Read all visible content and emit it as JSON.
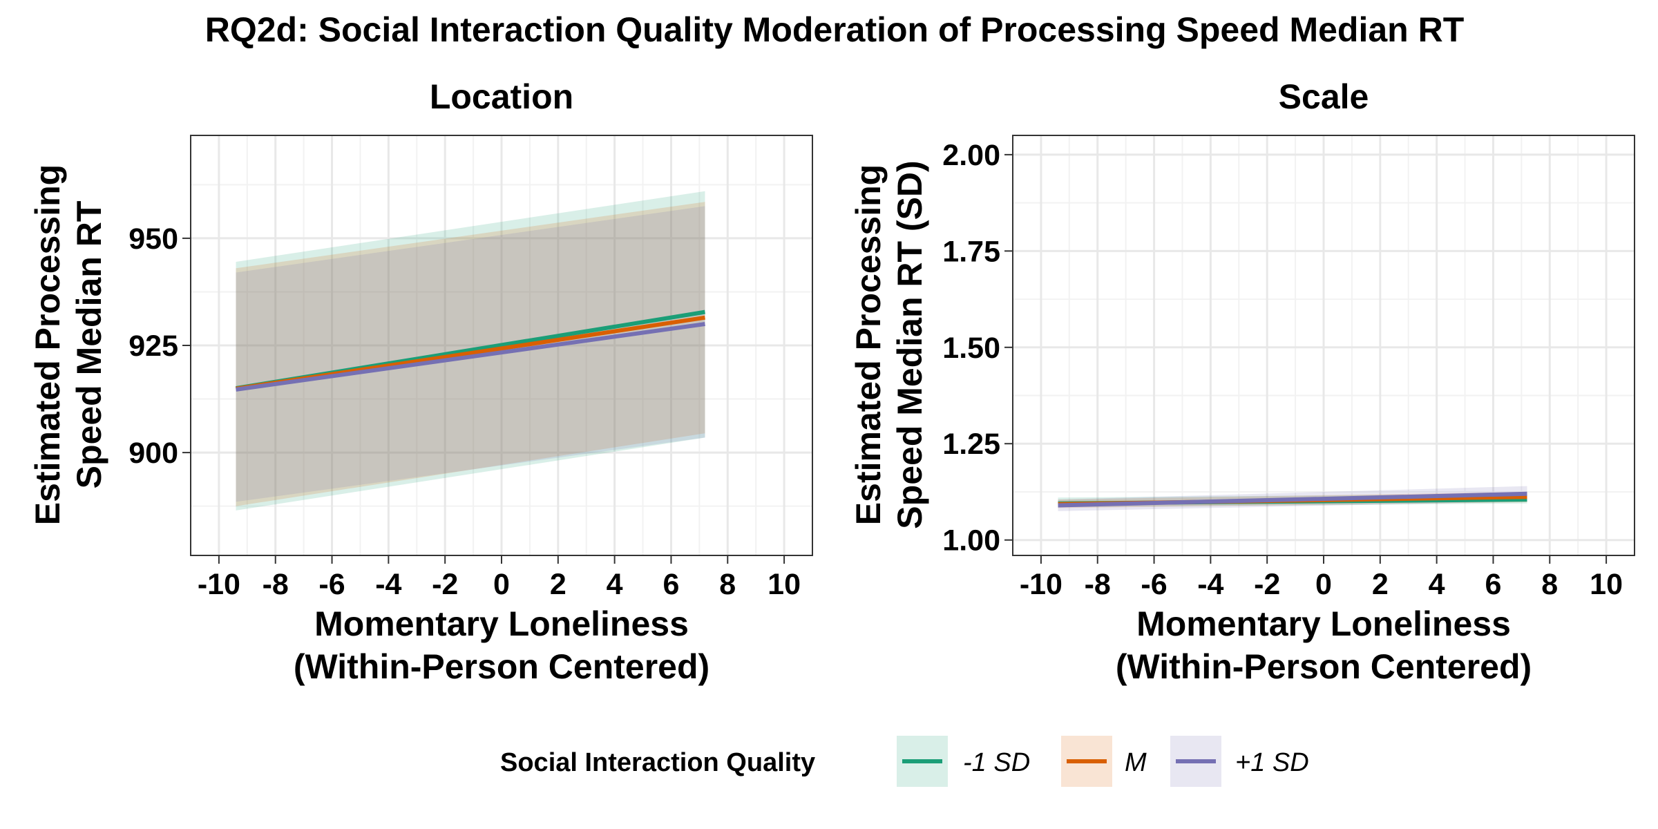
{
  "chart_data": [
    {
      "type": "line",
      "title": "RQ2d: Social Interaction Quality Moderation of Processing Speed Median RT",
      "panel": "Location",
      "xlabel": [
        "Momentary Loneliness",
        "(Within-Person Centered)"
      ],
      "ylabel": [
        "Estimated Processing",
        "Speed Median RT"
      ],
      "xlim": [
        -11,
        11
      ],
      "ylim": [
        876,
        974
      ],
      "x_ticks": [
        -10,
        -8,
        -6,
        -4,
        -2,
        0,
        2,
        4,
        6,
        8,
        10
      ],
      "x_tick_labels": [
        "-10",
        "-8",
        "-6",
        "-4",
        "-2",
        "0",
        "2",
        "4",
        "6",
        "8",
        "10"
      ],
      "y_ticks": [
        900,
        925,
        950
      ],
      "y_tick_labels": [
        "900",
        "925",
        "950"
      ],
      "grid": true,
      "series": [
        {
          "name": "-1 SD",
          "x": [
            -9.4,
            7.2
          ],
          "y": [
            915.0,
            932.8
          ],
          "lower": [
            886.5,
            903.5
          ],
          "upper": [
            944.5,
            961.0
          ]
        },
        {
          "name": "M",
          "x": [
            -9.4,
            7.2
          ],
          "y": [
            914.9,
            931.5
          ],
          "lower": [
            887.5,
            904.5
          ],
          "upper": [
            943.0,
            958.5
          ]
        },
        {
          "name": "+1 SD",
          "x": [
            -9.4,
            7.2
          ],
          "y": [
            914.7,
            930.0
          ],
          "lower": [
            888.5,
            903.5
          ],
          "upper": [
            942.0,
            957.5
          ]
        }
      ]
    },
    {
      "type": "line",
      "panel": "Scale",
      "xlabel": [
        "Momentary Loneliness",
        "(Within-Person Centered)"
      ],
      "ylabel": [
        "Estimated Processing",
        "Speed Median RT (SD)"
      ],
      "xlim": [
        -11,
        11
      ],
      "ylim": [
        0.96,
        2.05
      ],
      "x_ticks": [
        -10,
        -8,
        -6,
        -4,
        -2,
        0,
        2,
        4,
        6,
        8,
        10
      ],
      "x_tick_labels": [
        "-10",
        "-8",
        "-6",
        "-4",
        "-2",
        "0",
        "2",
        "4",
        "6",
        "8",
        "10"
      ],
      "y_ticks": [
        1.0,
        1.25,
        1.5,
        1.75,
        2.0
      ],
      "y_tick_labels": [
        "1.00",
        "1.25",
        "1.50",
        "1.75",
        "2.00"
      ],
      "grid": true,
      "series": [
        {
          "name": "-1 SD",
          "x": [
            -9.4,
            7.2
          ],
          "y": [
            1.095,
            1.105
          ],
          "lower": [
            1.085,
            1.095
          ],
          "upper": [
            1.11,
            1.12
          ]
        },
        {
          "name": "M",
          "x": [
            -9.4,
            7.2
          ],
          "y": [
            1.093,
            1.112
          ],
          "lower": [
            1.083,
            1.098
          ],
          "upper": [
            1.105,
            1.125
          ]
        },
        {
          "name": "+1 SD",
          "x": [
            -9.4,
            7.2
          ],
          "y": [
            1.09,
            1.12
          ],
          "lower": [
            1.075,
            1.1
          ],
          "upper": [
            1.105,
            1.14
          ]
        }
      ]
    }
  ],
  "legend": {
    "title": "Social Interaction Quality",
    "position": "bottom",
    "items": [
      {
        "label": "-1 SD",
        "color": "#1b9e77"
      },
      {
        "label": "M",
        "color": "#d95f02"
      },
      {
        "label": "+1 SD",
        "color": "#7570b3"
      }
    ]
  },
  "colors": {
    "-1 SD": "#1b9e77",
    "M": "#d95f02",
    "+1 SD": "#7570b3"
  }
}
